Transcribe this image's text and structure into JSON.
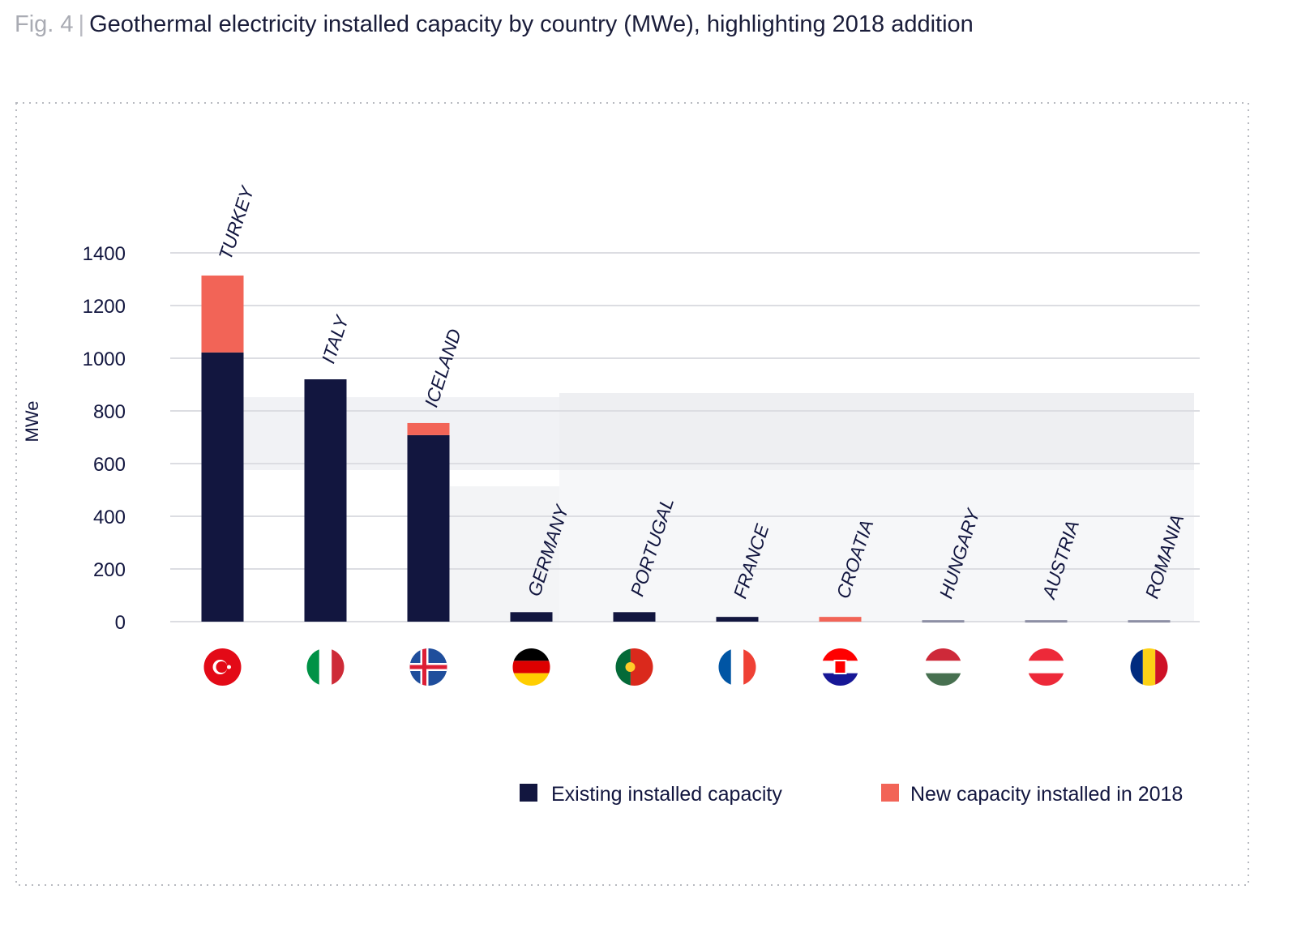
{
  "figure_label": "Fig. 4",
  "chart_data": {
    "type": "bar",
    "stacked": true,
    "title": "Geothermal electricity installed capacity by country (MWe), highlighting 2018 addition",
    "xlabel": "",
    "ylabel": "MWe",
    "ylim": [
      0,
      1400
    ],
    "yticks": [
      0,
      200,
      400,
      600,
      800,
      1000,
      1200,
      1400
    ],
    "grid": true,
    "legend_position": "bottom-right",
    "categories": [
      "TURKEY",
      "ITALY",
      "ICELAND",
      "GERMANY",
      "PORTUGAL",
      "FRANCE",
      "CROATIA",
      "HUNGARY",
      "AUSTRIA",
      "ROMANIA"
    ],
    "series": [
      {
        "name": "Existing installed capacity",
        "color": "#12163f",
        "values": [
          1022,
          920,
          708,
          36,
          36,
          18,
          0,
          3,
          3,
          3
        ]
      },
      {
        "name": "New capacity installed in 2018",
        "color": "#f26457",
        "values": [
          292,
          0,
          46,
          0,
          0,
          0,
          18,
          0,
          0,
          0
        ]
      }
    ]
  }
}
